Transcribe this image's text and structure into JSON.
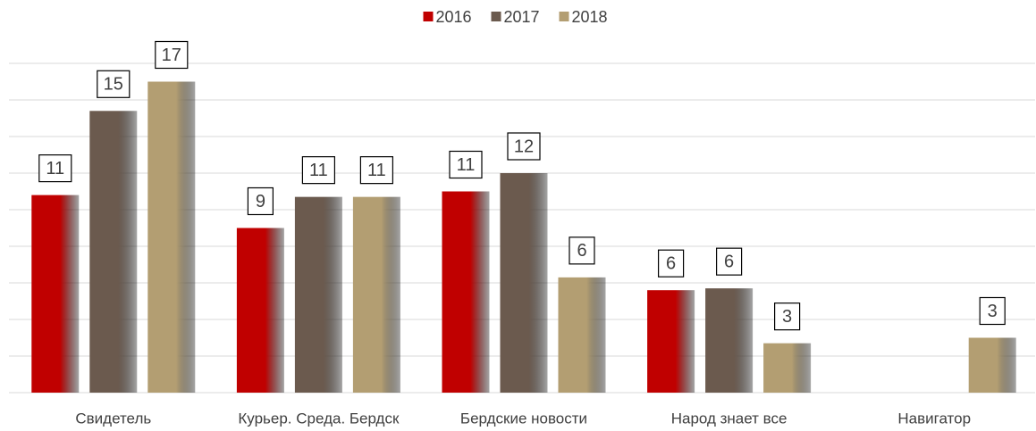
{
  "chart_data": {
    "type": "bar",
    "categories": [
      "Свидетель",
      "Курьер. Среда. Бердск",
      "Бердские новости",
      "Народ знает все",
      "Навигатор"
    ],
    "series": [
      {
        "name": "2016",
        "color": "#c00000",
        "values": [
          10.8,
          9,
          11,
          5.6,
          null
        ],
        "value_labels": [
          "11",
          "9",
          "11",
          "6",
          null
        ]
      },
      {
        "name": "2017",
        "color": "#6b5a4e",
        "values": [
          15.4,
          10.7,
          12,
          5.7,
          null
        ],
        "value_labels": [
          "15",
          "11",
          "12",
          "6",
          null
        ]
      },
      {
        "name": "2018",
        "color": "#b39e72",
        "values": [
          17,
          10.7,
          6.3,
          2.7,
          3
        ],
        "value_labels": [
          "17",
          "11",
          "6",
          "3",
          "3"
        ]
      }
    ],
    "ylim": [
      0,
      18
    ],
    "yticks": [
      0,
      2,
      4,
      6,
      8,
      10,
      12,
      14,
      16,
      18
    ],
    "grid": true,
    "legend": "top"
  }
}
